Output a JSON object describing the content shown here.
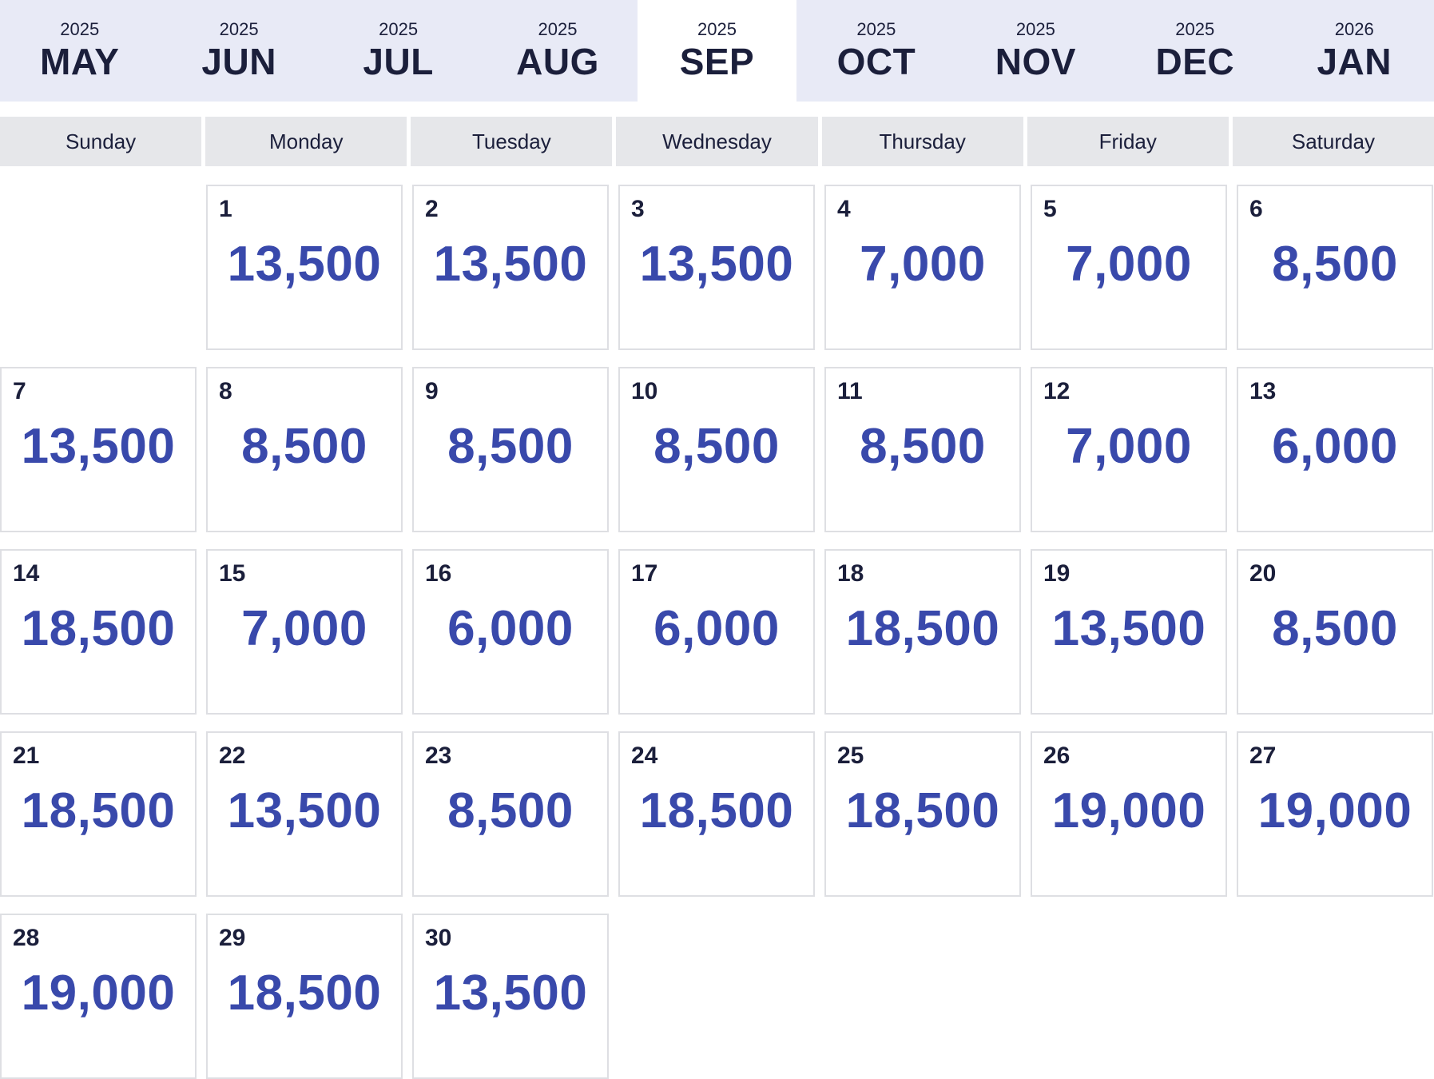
{
  "months": [
    {
      "year": "2025",
      "name": "MAY",
      "active": false
    },
    {
      "year": "2025",
      "name": "JUN",
      "active": false
    },
    {
      "year": "2025",
      "name": "JUL",
      "active": false
    },
    {
      "year": "2025",
      "name": "AUG",
      "active": false
    },
    {
      "year": "2025",
      "name": "SEP",
      "active": true
    },
    {
      "year": "2025",
      "name": "OCT",
      "active": false
    },
    {
      "year": "2025",
      "name": "NOV",
      "active": false
    },
    {
      "year": "2025",
      "name": "DEC",
      "active": false
    },
    {
      "year": "2026",
      "name": "JAN",
      "active": false
    }
  ],
  "weekdays": [
    "Sunday",
    "Monday",
    "Tuesday",
    "Wednesday",
    "Thursday",
    "Friday",
    "Saturday"
  ],
  "calendar": {
    "first_weekday_index": 1,
    "days": [
      {
        "day": "1",
        "price": "13,500"
      },
      {
        "day": "2",
        "price": "13,500"
      },
      {
        "day": "3",
        "price": "13,500"
      },
      {
        "day": "4",
        "price": "7,000"
      },
      {
        "day": "5",
        "price": "7,000"
      },
      {
        "day": "6",
        "price": "8,500"
      },
      {
        "day": "7",
        "price": "13,500"
      },
      {
        "day": "8",
        "price": "8,500"
      },
      {
        "day": "9",
        "price": "8,500"
      },
      {
        "day": "10",
        "price": "8,500"
      },
      {
        "day": "11",
        "price": "8,500"
      },
      {
        "day": "12",
        "price": "7,000"
      },
      {
        "day": "13",
        "price": "6,000"
      },
      {
        "day": "14",
        "price": "18,500"
      },
      {
        "day": "15",
        "price": "7,000"
      },
      {
        "day": "16",
        "price": "6,000"
      },
      {
        "day": "17",
        "price": "6,000"
      },
      {
        "day": "18",
        "price": "18,500"
      },
      {
        "day": "19",
        "price": "13,500"
      },
      {
        "day": "20",
        "price": "8,500"
      },
      {
        "day": "21",
        "price": "18,500"
      },
      {
        "day": "22",
        "price": "13,500"
      },
      {
        "day": "23",
        "price": "8,500"
      },
      {
        "day": "24",
        "price": "18,500"
      },
      {
        "day": "25",
        "price": "18,500"
      },
      {
        "day": "26",
        "price": "19,000"
      },
      {
        "day": "27",
        "price": "19,000"
      },
      {
        "day": "28",
        "price": "19,000"
      },
      {
        "day": "29",
        "price": "18,500"
      },
      {
        "day": "30",
        "price": "13,500"
      }
    ]
  },
  "colors": {
    "tab_strip_bg": "#e8eaf6",
    "active_tab_bg": "#ffffff",
    "weekday_bg": "#e6e7ea",
    "price_text": "#3949ab",
    "dark_text": "#1b1f3b",
    "cell_border": "#dedfe3"
  }
}
